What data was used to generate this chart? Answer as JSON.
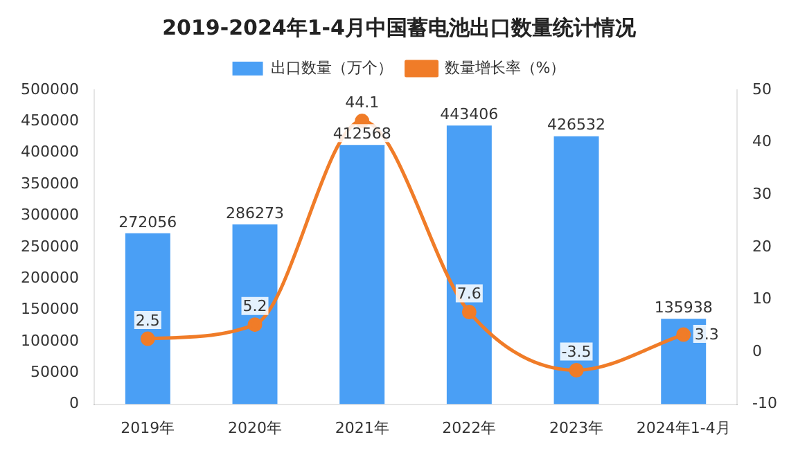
{
  "chart_data": {
    "type": "bar",
    "title": "2019-2024年1-4月中国蓄电池出口数量统计情况",
    "categories": [
      "2019年",
      "2020年",
      "2021年",
      "2022年",
      "2023年",
      "2024年1-4月"
    ],
    "series": [
      {
        "name": "出口数量（万个）",
        "color": "#4a9ff5",
        "values": [
          272056,
          286273,
          412568,
          443406,
          426532,
          135938
        ]
      },
      {
        "name": "数量增长率（%）",
        "type": "line",
        "axis": "y2",
        "color": "#f07c28",
        "marker": "circle",
        "values": [
          2.5,
          5.2,
          44.1,
          7.6,
          -3.5,
          3.3
        ]
      }
    ],
    "ylim": [
      0,
      500000
    ],
    "yticks": [
      0,
      50000,
      100000,
      150000,
      200000,
      250000,
      300000,
      350000,
      400000,
      450000,
      500000
    ],
    "y2lim": [
      -10,
      50
    ],
    "y2ticks": [
      -10,
      0,
      10,
      20,
      30,
      40,
      50
    ],
    "data_labels": true,
    "legend": "top",
    "grid": false
  }
}
